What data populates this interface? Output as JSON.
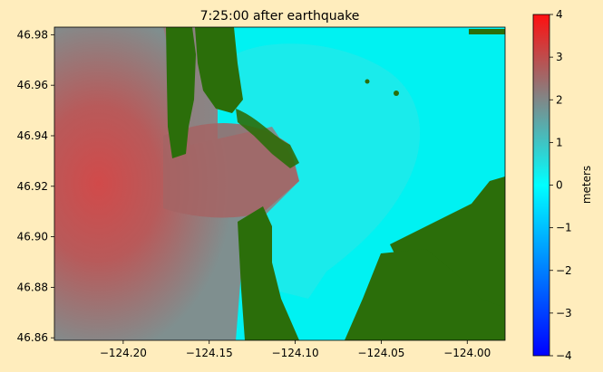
{
  "chart_data": {
    "type": "heatmap",
    "title": "7:25:00 after earthquake",
    "xlabel": "",
    "ylabel": "",
    "xlim": [
      -124.24,
      -123.978
    ],
    "ylim": [
      46.859,
      46.983
    ],
    "x_ticks": [
      -124.2,
      -124.15,
      -124.1,
      -124.05,
      -124.0
    ],
    "x_tick_labels": [
      "−124.20",
      "−124.15",
      "−124.10",
      "−124.05",
      "−124.00"
    ],
    "y_ticks": [
      46.86,
      46.88,
      46.9,
      46.92,
      46.94,
      46.96,
      46.98
    ],
    "y_tick_labels": [
      "46.86",
      "46.88",
      "46.90",
      "46.92",
      "46.94",
      "46.96",
      "46.98"
    ],
    "colorbar": {
      "label": "meters",
      "range": [
        -4,
        4
      ],
      "ticks": [
        -4,
        -3,
        -2,
        -1,
        0,
        1,
        2,
        3,
        4
      ],
      "tick_labels": [
        "−4",
        "−3",
        "−2",
        "−1",
        "0",
        "1",
        "2",
        "3",
        "4"
      ],
      "colors": [
        "#0000ff",
        "#00ffff",
        "#ff0000"
      ]
    },
    "land_color": "#2b6e0a",
    "grid": false,
    "legend": "none"
  }
}
